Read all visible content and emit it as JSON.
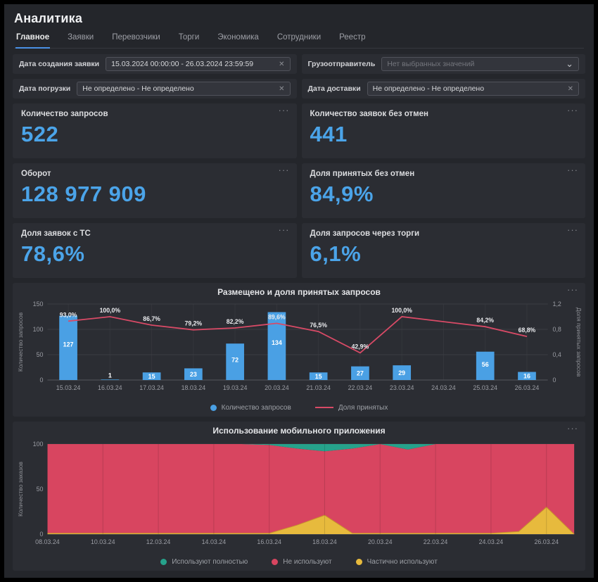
{
  "icons": {
    "clear": "✕",
    "chevron": "⌄",
    "more": "···"
  },
  "header": {
    "title": "Аналитика"
  },
  "tabs": [
    {
      "label": "Главное",
      "active": true
    },
    {
      "label": "Заявки"
    },
    {
      "label": "Перевозчики"
    },
    {
      "label": "Торги"
    },
    {
      "label": "Экономика"
    },
    {
      "label": "Сотрудники"
    },
    {
      "label": "Реестр"
    }
  ],
  "filters": [
    {
      "label": "Дата создания заявки",
      "value": "15.03.2024 00:00:00 - 26.03.2024 23:59:59"
    },
    {
      "label": "Грузоотправитель",
      "value": "Нет выбранных значений",
      "is_placeholder": true
    },
    {
      "label": "Дата погрузки",
      "value": "Не определено - Не определено"
    },
    {
      "label": "Дата доставки",
      "value": "Не определено - Не определено"
    }
  ],
  "kpis": [
    {
      "title": "Количество запросов",
      "value": "522"
    },
    {
      "title": "Количество заявок без отмен",
      "value": "441"
    },
    {
      "title": "Оборот",
      "value": "128 977 909"
    },
    {
      "title": "Доля принятых без отмен",
      "value": "84,9%"
    },
    {
      "title": "Доля заявок с ТС",
      "value": "78,6%"
    },
    {
      "title": "Доля запросов через торги",
      "value": "6,1%"
    }
  ],
  "colors": {
    "accent_blue": "#4ba4e9",
    "bar_blue": "#4aa0e4",
    "line_pink": "#d84a66",
    "area_red": "#d84560",
    "area_teal": "#26a28b",
    "area_yellow": "#e7ba3d"
  },
  "chart_data": [
    {
      "type": "bar",
      "title": "Размещено и доля принятых запросов",
      "categories": [
        "15.03.24",
        "16.03.24",
        "17.03.24",
        "18.03.24",
        "19.03.24",
        "20.03.24",
        "21.03.24",
        "22.03.24",
        "23.03.24",
        "24.03.24",
        "25.03.24",
        "26.03.24"
      ],
      "ylabel_left": "Количество запросов",
      "ylim_left": [
        0,
        150
      ],
      "yticks_left": [
        0,
        50,
        100,
        150
      ],
      "ylabel_right": "Доля принятых запросов",
      "ylim_right": [
        0,
        1.2
      ],
      "yticks_right": [
        "0",
        "0,4",
        "0,8",
        "1,2"
      ],
      "legend_position": "bottom",
      "grid": true,
      "series": [
        {
          "name": "Количество запросов",
          "type": "bar",
          "color": "#4aa0e4",
          "values": [
            127,
            1,
            15,
            23,
            72,
            134,
            15,
            27,
            29,
            null,
            56,
            16
          ]
        },
        {
          "name": "Доля принятых",
          "type": "line",
          "axis": "right",
          "color": "#d84a66",
          "values_pct": [
            93.0,
            100.0,
            86.7,
            79.2,
            82.2,
            89.6,
            76.5,
            42.9,
            100.0,
            null,
            84.2,
            68.8
          ],
          "labels": [
            "93,0%",
            "100,0%",
            "86,7%",
            "79,2%",
            "82,2%",
            "89,6%",
            "76,5%",
            "42,9%",
            "100,0%",
            null,
            "84,2%",
            "68,8%"
          ]
        }
      ]
    },
    {
      "type": "area",
      "title": "Использование мобильного приложения",
      "x_labels": [
        "08.03.24",
        "10.03.24",
        "12.03.24",
        "14.03.24",
        "16.03.24",
        "18.03.24",
        "20.03.24",
        "22.03.24",
        "24.03.24",
        "26.03.24"
      ],
      "x_start": "08.03.24",
      "points_daily": 20,
      "ylabel": "Количество заказов",
      "ylim": [
        0,
        100
      ],
      "yticks": [
        0,
        50,
        100
      ],
      "legend_position": "bottom",
      "stacked": true,
      "series": [
        {
          "name": "Используют полностью",
          "key": "fully",
          "color": "#26a28b",
          "values": [
            0,
            0,
            0,
            0,
            0,
            0,
            0,
            0,
            1,
            5,
            8,
            5,
            0,
            6,
            0,
            0,
            0,
            0,
            0,
            0
          ]
        },
        {
          "name": "Не используют",
          "key": "none",
          "color": "#d84560",
          "values": [
            99,
            99,
            99,
            99,
            99,
            99,
            99,
            99,
            98,
            85,
            71,
            94,
            99,
            93,
            99,
            99,
            99,
            97,
            70,
            100
          ]
        },
        {
          "name": "Частично используют",
          "key": "partially",
          "color": "#e7ba3d",
          "values": [
            1,
            1,
            1,
            1,
            1,
            1,
            1,
            1,
            1,
            10,
            21,
            1,
            1,
            1,
            1,
            1,
            1,
            3,
            30,
            0
          ]
        }
      ]
    }
  ]
}
